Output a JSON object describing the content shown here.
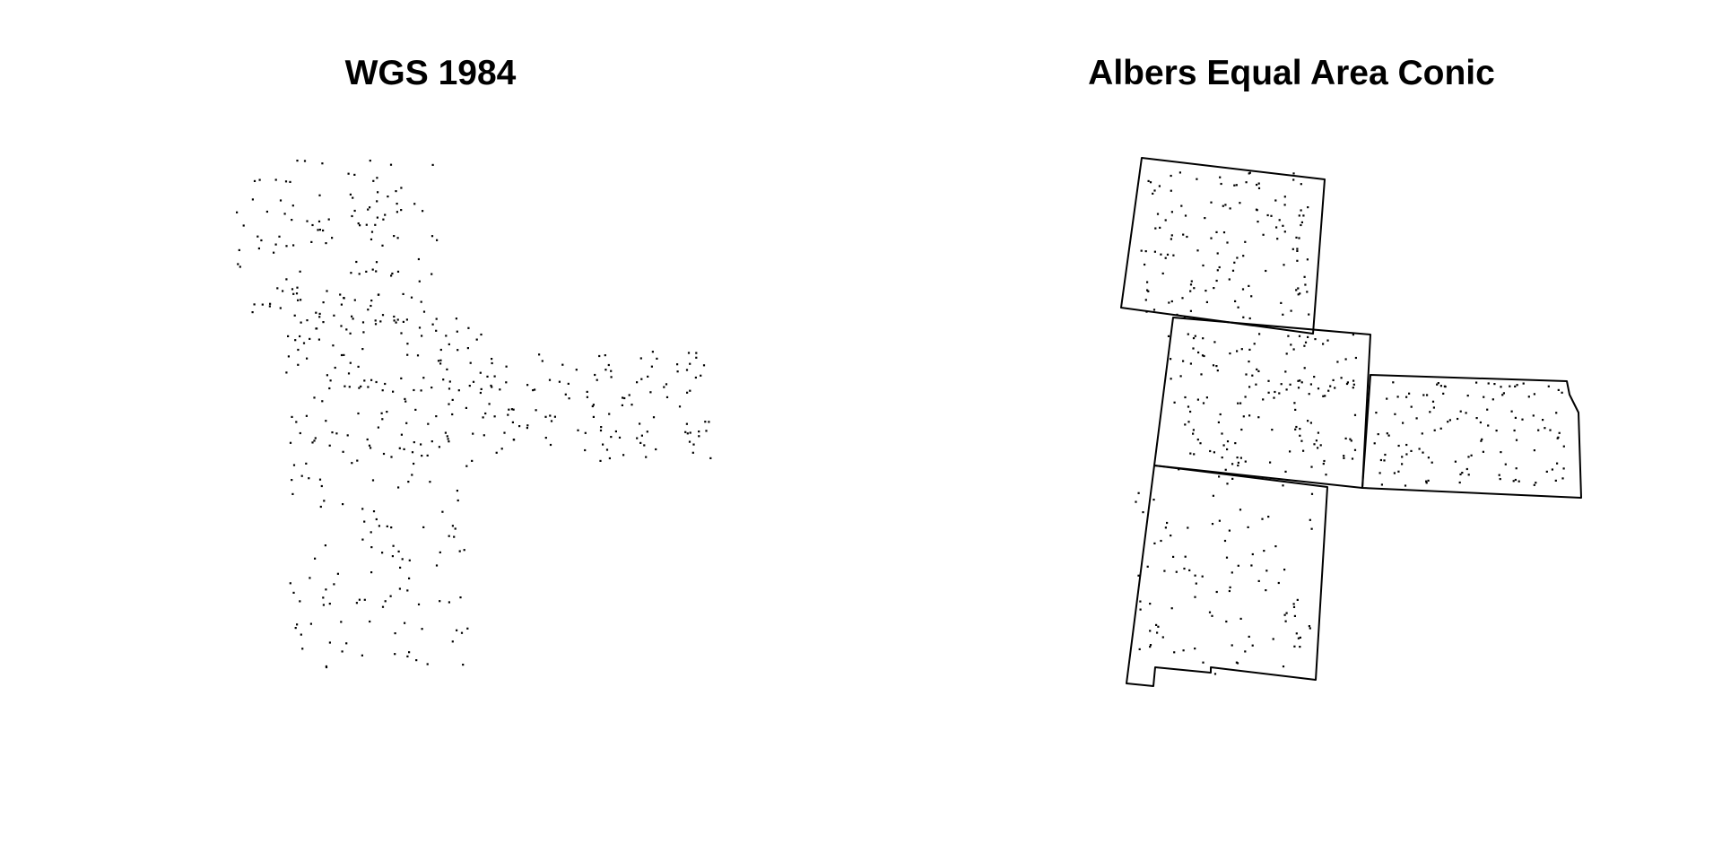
{
  "panels": [
    {
      "title": "WGS 1984",
      "projection": "wgs84",
      "show_outlines": false
    },
    {
      "title": "Albers Equal Area Conic",
      "projection": "albers",
      "show_outlines": true
    }
  ],
  "map": {
    "point_color": "#000000",
    "outline_color": "#000000",
    "background": "#ffffff"
  }
}
